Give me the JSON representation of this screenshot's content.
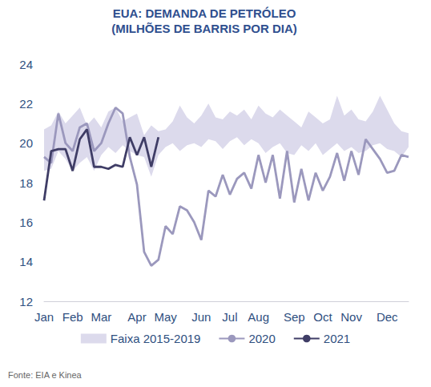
{
  "chart_data": {
    "type": "line",
    "title": "EUA: DEMANDA DE PETRÓLEO",
    "subtitle": "(MILHÕES DE BARRIS POR DIA)",
    "source": "Fonte: EIA e Kinea",
    "categories": [
      "Jan",
      null,
      null,
      null,
      "Feb",
      null,
      null,
      null,
      "Mar",
      null,
      null,
      null,
      null,
      "Apr",
      null,
      null,
      null,
      "May",
      null,
      null,
      null,
      null,
      "Jun",
      null,
      null,
      null,
      "Jul",
      null,
      null,
      null,
      "Aug",
      null,
      null,
      null,
      null,
      "Sep",
      null,
      null,
      null,
      "Oct",
      null,
      null,
      null,
      "Nov",
      null,
      null,
      null,
      null,
      "Dec",
      null,
      null,
      null
    ],
    "ylim": [
      12,
      24
    ],
    "yticks": [
      12,
      14,
      16,
      18,
      20,
      22,
      24
    ],
    "grid": false,
    "legend": "bottom",
    "series": [
      {
        "name": "Faixa 2015-2019",
        "type": "band",
        "color": "#dcdaec",
        "high": [
          20.7,
          20.9,
          21.6,
          21.0,
          21.4,
          21.8,
          20.9,
          21.3,
          20.8,
          21.6,
          21.8,
          21.1,
          21.3,
          21.5,
          20.4,
          20.9,
          20.6,
          20.7,
          21.1,
          21.9,
          21.3,
          21.0,
          21.4,
          22.0,
          21.3,
          21.2,
          21.6,
          21.4,
          21.7,
          21.2,
          21.9,
          21.5,
          21.3,
          21.7,
          21.4,
          21.1,
          20.8,
          21.6,
          21.3,
          21.0,
          21.2,
          22.4,
          21.4,
          21.7,
          21.2,
          21.1,
          21.6,
          22.4,
          21.7,
          21.0,
          20.6,
          20.5
        ],
        "low": [
          18.6,
          18.7,
          19.6,
          19.2,
          18.6,
          19.0,
          19.3,
          18.6,
          19.4,
          19.8,
          19.5,
          19.9,
          19.6,
          19.4,
          19.3,
          18.3,
          19.4,
          19.8,
          20.0,
          19.6,
          19.9,
          20.0,
          19.8,
          20.2,
          20.1,
          19.7,
          20.1,
          20.3,
          19.9,
          20.2,
          20.0,
          19.5,
          19.8,
          20.0,
          19.5,
          19.4,
          19.9,
          19.6,
          20.0,
          19.4,
          19.7,
          20.0,
          19.6,
          19.8,
          19.5,
          19.6,
          19.9,
          20.0,
          19.7,
          19.6,
          19.3,
          19.8
        ]
      },
      {
        "name": "2020",
        "type": "line",
        "color": "#9b98bd",
        "line_style": "solid",
        "values": [
          19.3,
          19.0,
          21.5,
          20.0,
          19.6,
          20.8,
          21.0,
          19.6,
          20.0,
          21.0,
          21.8,
          21.5,
          19.3,
          17.9,
          14.5,
          13.8,
          14.1,
          15.8,
          15.4,
          16.8,
          16.6,
          16.0,
          15.1,
          17.6,
          17.3,
          18.4,
          17.4,
          18.2,
          18.5,
          17.7,
          19.4,
          18.0,
          19.4,
          17.2,
          19.6,
          17.0,
          18.7,
          17.1,
          18.5,
          17.6,
          18.3,
          19.5,
          18.1,
          19.6,
          18.4,
          20.2,
          19.7,
          19.2,
          18.5,
          18.6,
          19.4,
          19.3
        ]
      },
      {
        "name": "2021",
        "type": "line",
        "color": "#3f3d66",
        "line_style": "solid",
        "values": [
          17.1,
          19.6,
          19.7,
          19.7,
          18.6,
          20.2,
          20.7,
          18.8,
          18.8,
          18.7,
          18.9,
          18.8,
          20.3,
          19.4,
          20.3,
          18.8,
          20.3,
          null,
          null,
          null,
          null,
          null,
          null,
          null,
          null,
          null,
          null,
          null,
          null,
          null,
          null,
          null,
          null,
          null,
          null,
          null,
          null,
          null,
          null,
          null,
          null,
          null,
          null,
          null,
          null,
          null,
          null,
          null,
          null,
          null,
          null,
          null
        ]
      }
    ]
  }
}
